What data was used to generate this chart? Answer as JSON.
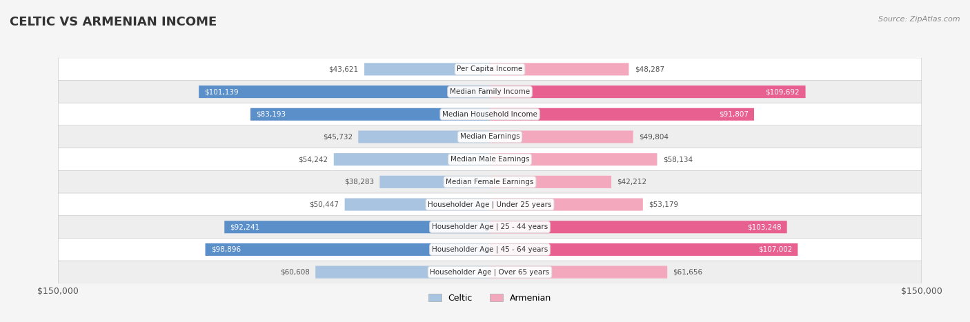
{
  "title": "CELTIC VS ARMENIAN INCOME",
  "source": "Source: ZipAtlas.com",
  "categories": [
    "Per Capita Income",
    "Median Family Income",
    "Median Household Income",
    "Median Earnings",
    "Median Male Earnings",
    "Median Female Earnings",
    "Householder Age | Under 25 years",
    "Householder Age | 25 - 44 years",
    "Householder Age | 45 - 64 years",
    "Householder Age | Over 65 years"
  ],
  "celtic_values": [
    43621,
    101139,
    83193,
    45732,
    54242,
    38283,
    50447,
    92241,
    98896,
    60608
  ],
  "armenian_values": [
    48287,
    109692,
    91807,
    49804,
    58134,
    42212,
    53179,
    103248,
    107002,
    61656
  ],
  "celtic_labels": [
    "$43,621",
    "$101,139",
    "$83,193",
    "$45,732",
    "$54,242",
    "$38,283",
    "$50,447",
    "$92,241",
    "$98,896",
    "$60,608"
  ],
  "armenian_labels": [
    "$48,287",
    "$109,692",
    "$91,807",
    "$49,804",
    "$58,134",
    "$42,212",
    "$53,179",
    "$103,248",
    "$107,002",
    "$61,656"
  ],
  "celtic_color_light": "#a8c4e0",
  "celtic_color_dark": "#5b8fc9",
  "armenian_color_light": "#f4a8be",
  "armenian_color_dark": "#e86090",
  "max_value": 150000,
  "bar_height": 0.55,
  "background_color": "#f5f5f5",
  "row_bg_light": "#ffffff",
  "row_bg_dark": "#eeeeee",
  "title_fontsize": 13,
  "label_fontsize": 7.5,
  "category_fontsize": 7.5,
  "legend_fontsize": 9,
  "source_fontsize": 8
}
